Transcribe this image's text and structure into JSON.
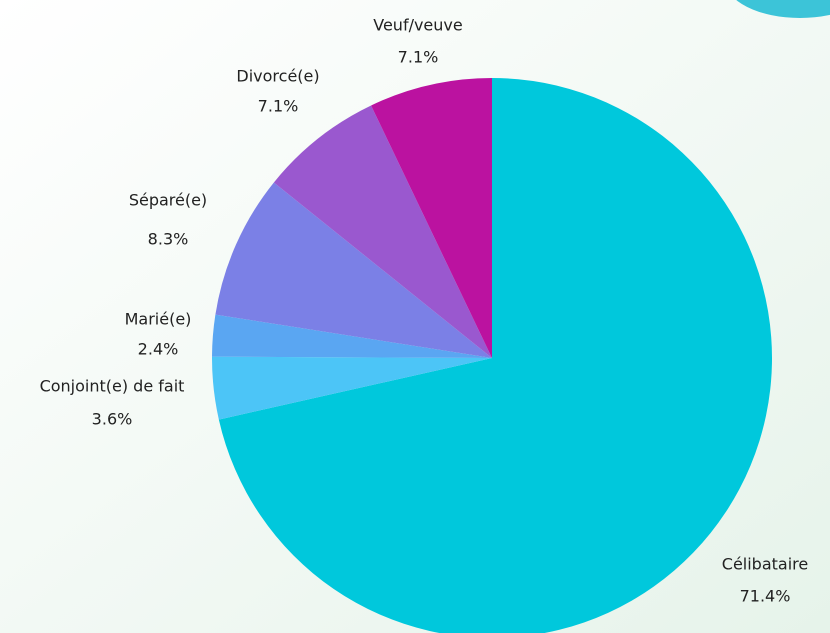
{
  "chart_data": {
    "type": "pie",
    "categories": [
      "Célibataire",
      "Conjoint(e) de fait",
      "Marié(e)",
      "Séparé(e)",
      "Divorcé(e)",
      "Veuf/veuve"
    ],
    "values": [
      71.4,
      3.6,
      2.4,
      8.3,
      7.1,
      7.1
    ],
    "value_labels": [
      "71.4%",
      "3.6%",
      "2.4%",
      "8.3%",
      "7.1%",
      "7.1%"
    ],
    "colors": [
      "#00c8dc",
      "#4cc5f7",
      "#5aa6f2",
      "#7b80e6",
      "#9a58cf",
      "#bb12a0"
    ]
  }
}
